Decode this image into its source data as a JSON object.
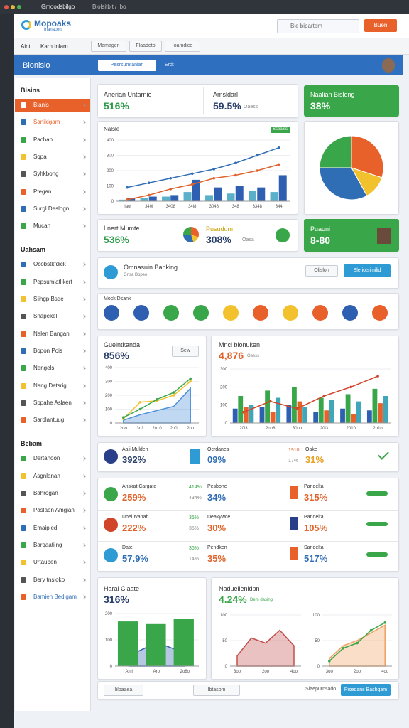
{
  "browser": {
    "tabs": [
      "Gmoodsbilgo",
      "Biolsitbit / Ibo"
    ]
  },
  "header": {
    "logo": "Mopoaks",
    "logo_sub": "Inanacen",
    "search": "Ble bipartem",
    "button": "Buen"
  },
  "nav": {
    "links": [
      "Aint",
      "Karn Inlam"
    ],
    "dropdowns": [
      "Mamagen",
      "Flaadeto",
      "Ioamdice"
    ]
  },
  "toolbar": {
    "title": "Bionisio",
    "tabs": [
      "Pesrsumtanlan",
      "Erdt"
    ]
  },
  "sidebar": [
    {
      "title": "Bisins",
      "items": [
        "Bianis",
        "Sanikigam",
        "Pachan",
        "Sqpa",
        "Syhkbong",
        "Ptegan",
        "Surgl Deslogn",
        "Mucan"
      ]
    },
    {
      "title": "Uahsam",
      "items": [
        "Ocobstkfdick",
        "Pepsumiatlikert",
        "Siihgp Bsde",
        "Snapekel",
        "Nalen Bangan",
        "Bopon Pois",
        "Nengels",
        "Nang Detsrig",
        "Sppahe Aslaen",
        "Sardlantuug"
      ]
    },
    {
      "title": "Bebam",
      "items": [
        "Dertanoon",
        "Asgnlanan",
        "Bahrogan",
        "Paslaon Amgian",
        "Emaipled",
        "Barqaatiing",
        "Urtauben",
        "Bery tnsioko",
        "Bamien Bedigam"
      ]
    }
  ],
  "kpi_top": {
    "label": "Anerian Untarnie",
    "value": "516%",
    "label2": "Amsldarl",
    "value2": "59.5%",
    "note2": "Oaess"
  },
  "kpi_green": {
    "label": "Naalian Bislong",
    "value": "38%"
  },
  "kpi_row": {
    "label": "Lnert Mumte",
    "value": "536%",
    "label2": "Pusudum",
    "value2": "308%",
    "note2": "Oasa"
  },
  "kpi_green2": {
    "label": "Puaoni",
    "value": "8-80"
  },
  "banner": {
    "title": "Omnasuin Banking",
    "subtitle": "Gnsa Bopee",
    "button1": "Olislon",
    "button2": "Sle iotsimilid"
  },
  "circles": {
    "title": "Mock Dsank"
  },
  "list_top": [
    {
      "label": "Aali Mulden",
      "value": "392%"
    },
    {
      "label": "Ocrdanes",
      "value": "09%"
    },
    {
      "label": "Oake",
      "value": "31%",
      "small1": "1910",
      "small2": "17%"
    }
  ],
  "list": [
    {
      "label": "Anskat Cargate",
      "value": "259%",
      "small1": "414%",
      "small2": "434%",
      "mid_label": "Pesbone",
      "mid_value": "34%",
      "right_label": "Pandelta",
      "right_value": "315%"
    },
    {
      "label": "Ubel Ivanab",
      "value": "222%",
      "small1": "36%",
      "small2": "35%",
      "mid_label": "Deakywce",
      "mid_value": "30%",
      "right_label": "Pandelta",
      "right_value": "105%"
    },
    {
      "label": "Date",
      "value": "57.9%",
      "small1": "36%",
      "small2": "14%",
      "mid_label": "Pendken",
      "mid_value": "35%",
      "right_label": "Sandelta",
      "right_value": "517%"
    }
  ],
  "charts": [
    {
      "type": "combo",
      "title": "Nalsle",
      "badge": "Ssealss",
      "categories": [
        "Ilaol",
        "340l",
        "3408",
        "34l8",
        "3048",
        "348",
        "3348",
        "344"
      ],
      "ylim": [
        0,
        400
      ],
      "yticks": [
        0,
        100,
        200,
        300,
        400
      ],
      "series": [
        {
          "kind": "bar",
          "color": "#5ab0c8",
          "values": [
            10,
            20,
            30,
            60,
            40,
            50,
            70,
            60
          ]
        },
        {
          "kind": "bar",
          "color": "#2f5fb0",
          "values": [
            20,
            30,
            40,
            140,
            90,
            100,
            90,
            170
          ]
        },
        {
          "kind": "line",
          "color": "#2f6db5",
          "values": [
            90,
            120,
            150,
            180,
            210,
            250,
            300,
            350
          ]
        },
        {
          "kind": "line",
          "color": "#e0622a",
          "values": [
            10,
            40,
            80,
            110,
            150,
            170,
            200,
            240
          ]
        }
      ]
    },
    {
      "type": "pie",
      "values": [
        30,
        12,
        33,
        25
      ],
      "colors": [
        "#e8602a",
        "#f2c12e",
        "#2f6db5",
        "#3aa64a"
      ]
    },
    {
      "type": "combo",
      "title": "Gueintkanda",
      "headline": "856%",
      "button": "Sew",
      "categories": [
        "2oo",
        "3o1",
        "2o10",
        "2o0",
        "2oo"
      ],
      "ylim": [
        0,
        400
      ],
      "yticks": [
        0,
        100,
        200,
        300,
        400
      ],
      "series": [
        {
          "kind": "area",
          "color": "#4a90d9",
          "values": [
            20,
            60,
            90,
            120,
            250
          ]
        },
        {
          "kind": "line",
          "color": "#f2c12e",
          "values": [
            30,
            150,
            160,
            200,
            300
          ]
        },
        {
          "kind": "line",
          "color": "#3aa64a",
          "values": [
            40,
            100,
            170,
            220,
            320
          ]
        }
      ]
    },
    {
      "type": "combo",
      "title": "Mncl blonuken",
      "headline": "4,876",
      "note": "Oasss",
      "categories": [
        "20l3",
        "2oo8",
        "30oo",
        "20l3",
        "2010",
        "2o1o"
      ],
      "ylim": [
        0,
        300
      ],
      "yticks": [
        0,
        100,
        200,
        300
      ],
      "series": [
        {
          "kind": "bar",
          "color": "#2f5fb0",
          "values": [
            80,
            90,
            100,
            60,
            80,
            70
          ]
        },
        {
          "kind": "bar",
          "color": "#3aa64a",
          "values": [
            150,
            180,
            200,
            140,
            160,
            190
          ]
        },
        {
          "kind": "bar",
          "color": "#e8602a",
          "values": [
            90,
            60,
            120,
            70,
            50,
            110
          ]
        },
        {
          "kind": "bar",
          "color": "#3fa7b8",
          "values": [
            100,
            140,
            90,
            130,
            120,
            150
          ]
        },
        {
          "kind": "line",
          "color": "#d0452a",
          "values": [
            60,
            120,
            80,
            150,
            200,
            260
          ]
        }
      ]
    },
    {
      "type": "combo",
      "title": "Haral Claate",
      "headline": "316%",
      "categories": [
        "Aml",
        "Arol",
        "2o8o"
      ],
      "ylim": [
        0,
        200
      ],
      "yticks": [
        0,
        100,
        200
      ],
      "series": [
        {
          "kind": "area",
          "color": "#2f5fb0",
          "values": [
            40,
            90,
            50
          ]
        },
        {
          "kind": "bar",
          "color": "#3aa64a",
          "values": [
            170,
            160,
            180
          ]
        }
      ]
    },
    {
      "type": "combo",
      "title": "Naduellenldpn",
      "headline": "4.24%",
      "note": "Dem dasing",
      "categories": [
        "3oo",
        null,
        "2oo",
        null,
        "4oo"
      ],
      "ylim": [
        0,
        100
      ],
      "yticks": [
        0,
        50,
        100
      ],
      "series": [
        {
          "kind": "area",
          "color": "#c0504d",
          "values": [
            20,
            55,
            45,
            70,
            40
          ]
        }
      ]
    },
    {
      "type": "combo",
      "categories": [
        "3oo",
        null,
        "2oo",
        null,
        "4oo"
      ],
      "ylim": [
        0,
        100
      ],
      "yticks": [
        0,
        50,
        100
      ],
      "series": [
        {
          "kind": "area",
          "color": "#f0a060",
          "values": [
            15,
            40,
            50,
            65,
            80
          ]
        },
        {
          "kind": "line",
          "color": "#3aa64a",
          "values": [
            10,
            35,
            45,
            70,
            85
          ]
        }
      ]
    }
  ],
  "footer": {
    "select1": "Iiloaaea",
    "select2": "Ibtaspm",
    "label": "Slaepurnsado",
    "button": "Pisedans Bashqam"
  }
}
